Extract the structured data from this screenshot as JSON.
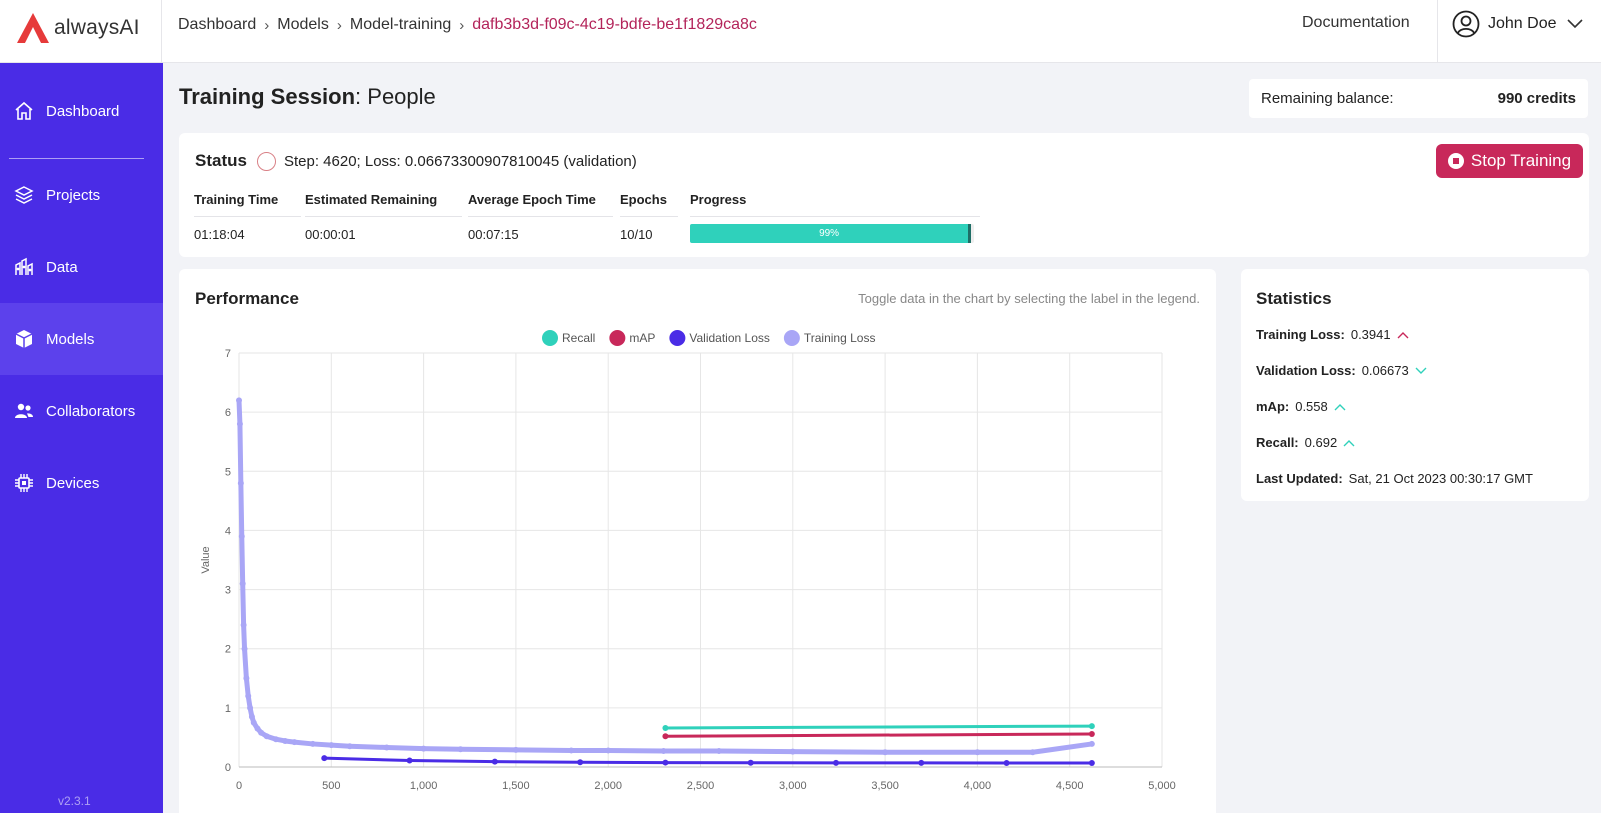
{
  "brand": {
    "name": "alwaysAI"
  },
  "breadcrumb": {
    "items": [
      "Dashboard",
      "Models",
      "Model-training"
    ],
    "current": "dafb3b3d-f09c-4c19-bdfe-be1f1829ca8c"
  },
  "header": {
    "documentation": "Documentation",
    "user_name": "John Doe"
  },
  "sidebar": {
    "items": [
      {
        "label": "Dashboard",
        "icon": "home-icon"
      },
      {
        "label": "Projects",
        "icon": "layers-icon"
      },
      {
        "label": "Data",
        "icon": "data-icon"
      },
      {
        "label": "Models",
        "icon": "cube-icon",
        "active": true
      },
      {
        "label": "Collaborators",
        "icon": "users-icon"
      },
      {
        "label": "Devices",
        "icon": "chip-icon"
      }
    ],
    "version": "v2.3.1"
  },
  "page": {
    "title_bold": "Training Session",
    "title_rest": ": People"
  },
  "balance": {
    "label": "Remaining balance:",
    "value": "990 credits"
  },
  "status": {
    "label": "Status",
    "text": "Step: 4620; Loss: 0.06673300907810045 (validation)",
    "stop_button": "Stop Training",
    "columns": {
      "training_time": {
        "header": "Training Time",
        "value": "01:18:04"
      },
      "estimated_remaining": {
        "header": "Estimated Remaining",
        "value": "00:00:01"
      },
      "average_epoch_time": {
        "header": "Average Epoch Time",
        "value": "00:07:15"
      },
      "epochs": {
        "header": "Epochs",
        "value": "10/10"
      },
      "progress": {
        "header": "Progress",
        "value": "99%",
        "fraction": 0.99
      }
    }
  },
  "performance": {
    "title": "Performance",
    "hint": "Toggle data in the chart by selecting the label in the legend."
  },
  "statistics": {
    "title": "Statistics",
    "rows": [
      {
        "label": "Training Loss:",
        "value": "0.3941",
        "trend": "up",
        "color": "#c8285a"
      },
      {
        "label": "Validation Loss:",
        "value": "0.06673",
        "trend": "down",
        "color": "#2fd1bb"
      },
      {
        "label": "mAp:",
        "value": "0.558",
        "trend": "up",
        "color": "#2fd1bb"
      },
      {
        "label": "Recall:",
        "value": "0.692",
        "trend": "up",
        "color": "#2fd1bb"
      },
      {
        "label": "Last Updated:",
        "value": "Sat, 21 Oct 2023 00:30:17 GMT"
      }
    ]
  },
  "chart_data": {
    "type": "line",
    "title": "",
    "xlabel": "",
    "ylabel": "Value",
    "xlim": [
      0,
      5000
    ],
    "ylim": [
      0,
      7
    ],
    "xticks": [
      0,
      500,
      1000,
      1500,
      2000,
      2500,
      3000,
      3500,
      4000,
      4500,
      5000
    ],
    "xtick_labels": [
      "0",
      "500",
      "1,000",
      "1,500",
      "2,000",
      "2,500",
      "3,000",
      "3,500",
      "4,000",
      "4,500",
      "5,000"
    ],
    "yticks": [
      0,
      1,
      2,
      3,
      4,
      5,
      6,
      7
    ],
    "grid": true,
    "legend": "top-center",
    "series": [
      {
        "name": "Recall",
        "color": "#2fd1bb",
        "x": [
          2310,
          4620
        ],
        "y": [
          0.66,
          0.692
        ]
      },
      {
        "name": "mAP",
        "color": "#c8285a",
        "x": [
          2310,
          4620
        ],
        "y": [
          0.52,
          0.558
        ]
      },
      {
        "name": "Validation Loss",
        "color": "#4a2ce6",
        "x": [
          462,
          924,
          1386,
          1848,
          2310,
          2772,
          3234,
          3696,
          4158,
          4620
        ],
        "y": [
          0.15,
          0.11,
          0.09,
          0.08,
          0.075,
          0.072,
          0.07,
          0.069,
          0.068,
          0.0667
        ]
      },
      {
        "name": "Training Loss",
        "color": "#a9a6f6",
        "x": [
          0,
          5,
          10,
          15,
          20,
          25,
          30,
          40,
          50,
          60,
          70,
          80,
          100,
          120,
          150,
          200,
          250,
          300,
          400,
          500,
          600,
          800,
          1000,
          1200,
          1500,
          1800,
          2000,
          2300,
          2600,
          3000,
          3500,
          4000,
          4300,
          4620
        ],
        "y": [
          6.2,
          5.8,
          4.8,
          3.9,
          3.1,
          2.4,
          2.0,
          1.5,
          1.2,
          1.0,
          0.85,
          0.75,
          0.65,
          0.58,
          0.52,
          0.47,
          0.44,
          0.42,
          0.39,
          0.37,
          0.35,
          0.33,
          0.31,
          0.3,
          0.29,
          0.28,
          0.28,
          0.27,
          0.27,
          0.26,
          0.25,
          0.25,
          0.25,
          0.39
        ]
      }
    ]
  }
}
